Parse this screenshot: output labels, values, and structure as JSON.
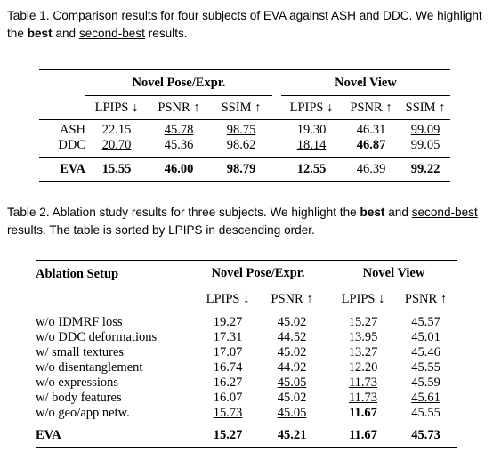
{
  "table1": {
    "caption": {
      "label": "Table 1.",
      "text": "Comparison results for four subjects of EVA against ASH and DDC. We highlight the",
      "best": "best",
      "and": "and",
      "second": "second-best",
      "end": "results."
    },
    "group_headers": [
      "Novel Pose/Expr.",
      "Novel View"
    ],
    "columns": [
      "LPIPS ↓",
      "PSNR ↑",
      "SSIM ↑",
      "LPIPS ↓",
      "PSNR ↑",
      "SSIM ↑"
    ],
    "rows": [
      {
        "method": "ASH",
        "values": [
          "22.15",
          "45.78",
          "98.75",
          "19.30",
          "46.31",
          "99.09"
        ]
      },
      {
        "method": "DDC",
        "values": [
          "20.70",
          "45.36",
          "98.62",
          "18.14",
          "46.87",
          "99.05"
        ]
      }
    ],
    "final_row": {
      "method": "EVA",
      "values": [
        "15.55",
        "46.00",
        "98.79",
        "12.55",
        "46.39",
        "99.22"
      ]
    }
  },
  "table2": {
    "caption": {
      "label": "Table 2.",
      "text": "Ablation study results for three subjects. We highlight the",
      "best": "best",
      "and": "and",
      "second": "second-best",
      "end": "results. The table is sorted by LPIPS in descending order."
    },
    "setup_header": "Ablation Setup",
    "group_headers": [
      "Novel Pose/Expr.",
      "Novel View"
    ],
    "columns": [
      "LPIPS ↓",
      "PSNR ↑",
      "LPIPS ↓",
      "PSNR ↑"
    ],
    "rows": [
      {
        "setup": "w/o IDMRF loss",
        "values": [
          "19.27",
          "45.02",
          "15.27",
          "45.57"
        ]
      },
      {
        "setup": "w/o DDC deformations",
        "values": [
          "17.31",
          "44.52",
          "13.95",
          "45.01"
        ]
      },
      {
        "setup": "w/ small textures",
        "values": [
          "17.07",
          "45.02",
          "13.27",
          "45.46"
        ]
      },
      {
        "setup": "w/o disentanglement",
        "values": [
          "16.74",
          "44.92",
          "12.20",
          "45.55"
        ]
      },
      {
        "setup": "w/o expressions",
        "values": [
          "16.27",
          "45.05",
          "11.73",
          "45.59"
        ]
      },
      {
        "setup": "w/ body features",
        "values": [
          "16.07",
          "45.02",
          "11.73",
          "45.61"
        ]
      },
      {
        "setup": "w/o geo/app netw.",
        "values": [
          "15.73",
          "45.05",
          "11.67",
          "45.55"
        ]
      }
    ],
    "final_row": {
      "setup": "EVA",
      "values": [
        "15.27",
        "45.21",
        "11.67",
        "45.73"
      ]
    }
  }
}
